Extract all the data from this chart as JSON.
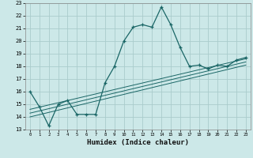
{
  "title": "",
  "xlabel": "Humidex (Indice chaleur)",
  "background_color": "#cce8e8",
  "grid_color": "#aacccc",
  "line_color": "#1a6666",
  "xlim": [
    -0.5,
    23.5
  ],
  "ylim": [
    13,
    23
  ],
  "xticks": [
    0,
    1,
    2,
    3,
    4,
    5,
    6,
    7,
    8,
    9,
    10,
    11,
    12,
    13,
    14,
    15,
    16,
    17,
    18,
    19,
    20,
    21,
    22,
    23
  ],
  "yticks": [
    13,
    14,
    15,
    16,
    17,
    18,
    19,
    20,
    21,
    22,
    23
  ],
  "line1_x": [
    0,
    1,
    2,
    3,
    4,
    5,
    6,
    7,
    8,
    9,
    10,
    11,
    12,
    13,
    14,
    15,
    16,
    17,
    18,
    19,
    20,
    21,
    22,
    23
  ],
  "line1_y": [
    16.0,
    14.8,
    13.3,
    15.0,
    15.3,
    14.2,
    14.2,
    14.2,
    16.7,
    18.0,
    20.0,
    21.1,
    21.3,
    21.1,
    22.7,
    21.3,
    19.5,
    18.0,
    18.1,
    17.8,
    18.1,
    18.0,
    18.5,
    18.7
  ],
  "line2_x": [
    0,
    23
  ],
  "line2_y": [
    14.0,
    18.1
  ],
  "line3_x": [
    0,
    23
  ],
  "line3_y": [
    14.3,
    18.35
  ],
  "line4_x": [
    0,
    23
  ],
  "line4_y": [
    14.6,
    18.6
  ]
}
